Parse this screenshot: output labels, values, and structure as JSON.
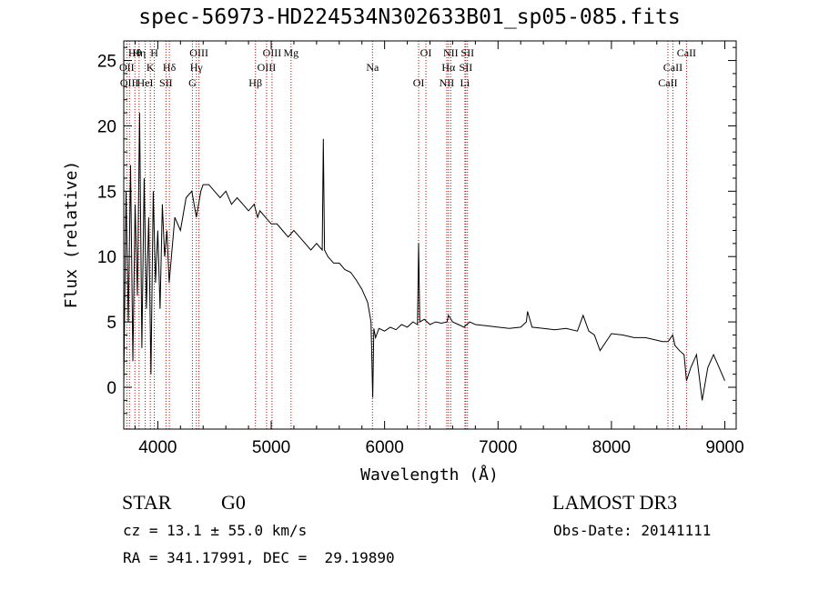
{
  "title": "spec-56973-HD224534N302633B01_sp05-085.fits",
  "info": {
    "object_class": "STAR",
    "subclass": "G0",
    "survey": "LAMOST DR3",
    "cz": "cz = 13.1 ± 55.0 km/s",
    "obs_date": "Obs-Date: 20141111",
    "coords": "RA = 341.17991, DEC =  29.19890"
  },
  "chart_data": {
    "type": "line",
    "xlabel": "Wavelength (Å)",
    "ylabel": "Flux (relative)",
    "xlim": [
      3700,
      9100
    ],
    "ylim": [
      -3.2,
      26.5
    ],
    "xticks": [
      4000,
      5000,
      6000,
      7000,
      8000,
      9000
    ],
    "yticks": [
      0,
      5,
      10,
      15,
      20,
      25
    ],
    "grid": false,
    "line_color": "#000000",
    "marker_color": "#cc0000",
    "series": [
      {
        "x": [
          3700,
          3720,
          3740,
          3760,
          3780,
          3800,
          3820,
          3840,
          3860,
          3880,
          3900,
          3920,
          3940,
          3960,
          3980,
          4000,
          4020,
          4040,
          4060,
          4080,
          4100,
          4150,
          4200,
          4250,
          4300,
          4340,
          4380,
          4400,
          4450,
          4500,
          4550,
          4600,
          4650,
          4700,
          4750,
          4800,
          4850,
          4880,
          4900,
          4950,
          5000,
          5050,
          5100,
          5150,
          5200,
          5250,
          5300,
          5350,
          5400,
          5450,
          5460,
          5470,
          5500,
          5550,
          5600,
          5650,
          5700,
          5750,
          5800,
          5850,
          5880,
          5895,
          5905,
          5920,
          5950,
          6000,
          6050,
          6100,
          6150,
          6200,
          6250,
          6290,
          6300,
          6310,
          6350,
          6400,
          6450,
          6500,
          6550,
          6563,
          6600,
          6650,
          6700,
          6750,
          6800,
          6900,
          7000,
          7100,
          7200,
          7250,
          7260,
          7300,
          7400,
          7500,
          7600,
          7700,
          7750,
          7800,
          7850,
          7900,
          8000,
          8100,
          8200,
          8300,
          8400,
          8450,
          8500,
          8540,
          8560,
          8600,
          8640,
          8662,
          8700,
          8750,
          8800,
          8850,
          8900,
          8950,
          9000
        ],
        "y": [
          0,
          15,
          5,
          17,
          2,
          14,
          7,
          21,
          3,
          16,
          6,
          13,
          1,
          15,
          8,
          12,
          6,
          14,
          10,
          12,
          8,
          13,
          12,
          14.5,
          15,
          13,
          15,
          15.5,
          15.5,
          15,
          14.5,
          15,
          14,
          14.5,
          14,
          13.5,
          14,
          13,
          13.5,
          13,
          12.5,
          12.5,
          12,
          11.5,
          12,
          11.5,
          11,
          10.5,
          11,
          10.5,
          19,
          10.5,
          10,
          9.5,
          9.5,
          9,
          8.8,
          8.2,
          7.5,
          6.5,
          5,
          -0.8,
          4.5,
          3.8,
          4.5,
          4.3,
          4.6,
          4.4,
          4.8,
          4.6,
          5,
          4.8,
          11,
          5,
          5.2,
          4.8,
          5,
          4.9,
          5,
          5.5,
          5,
          4.8,
          4.6,
          5,
          4.8,
          4.7,
          4.6,
          4.5,
          4.6,
          5,
          5.8,
          4.6,
          4.5,
          4.4,
          4.5,
          4.3,
          5.5,
          4.3,
          4,
          2.8,
          4.1,
          4,
          3.8,
          3.8,
          3.6,
          3.5,
          3.5,
          4,
          3.2,
          2.8,
          2.5,
          0.5,
          1.5,
          2.5,
          -1,
          1.5,
          2.5,
          1.5,
          0.5
        ]
      }
    ],
    "line_markers": [
      {
        "label": "Hθ",
        "wavelength": 3798
      },
      {
        "label": "OII",
        "wavelength": 3727
      },
      {
        "label": "OIII",
        "wavelength": 3750
      },
      {
        "label": "Hη",
        "wavelength": 3835
      },
      {
        "label": "K",
        "wavelength": 3934
      },
      {
        "label": "HeI",
        "wavelength": 3889
      },
      {
        "label": "H",
        "wavelength": 3969
      },
      {
        "label": "Hδ",
        "wavelength": 4102
      },
      {
        "label": "SII",
        "wavelength": 4072
      },
      {
        "label": "OIII",
        "wavelength": 4363
      },
      {
        "label": "Hγ",
        "wavelength": 4340
      },
      {
        "label": "G",
        "wavelength": 4305
      },
      {
        "label": "OIII",
        "wavelength": 5007
      },
      {
        "label": "OIII",
        "wavelength": 4959
      },
      {
        "label": "Hβ",
        "wavelength": 4861
      },
      {
        "label": "Mg",
        "wavelength": 5175
      },
      {
        "label": "Na",
        "wavelength": 5893
      },
      {
        "label": "OI",
        "wavelength": 6300
      },
      {
        "label": "OI",
        "wavelength": 6364
      },
      {
        "label": "Hα",
        "wavelength": 6563
      },
      {
        "label": "NII",
        "wavelength": 6548
      },
      {
        "label": "NII",
        "wavelength": 6583
      },
      {
        "label": "SII",
        "wavelength": 6716
      },
      {
        "label": "Li",
        "wavelength": 6708
      },
      {
        "label": "SII",
        "wavelength": 6731
      },
      {
        "label": "CaII",
        "wavelength": 8542
      },
      {
        "label": "CaII",
        "wavelength": 8498
      },
      {
        "label": "CaII",
        "wavelength": 8662
      }
    ]
  }
}
